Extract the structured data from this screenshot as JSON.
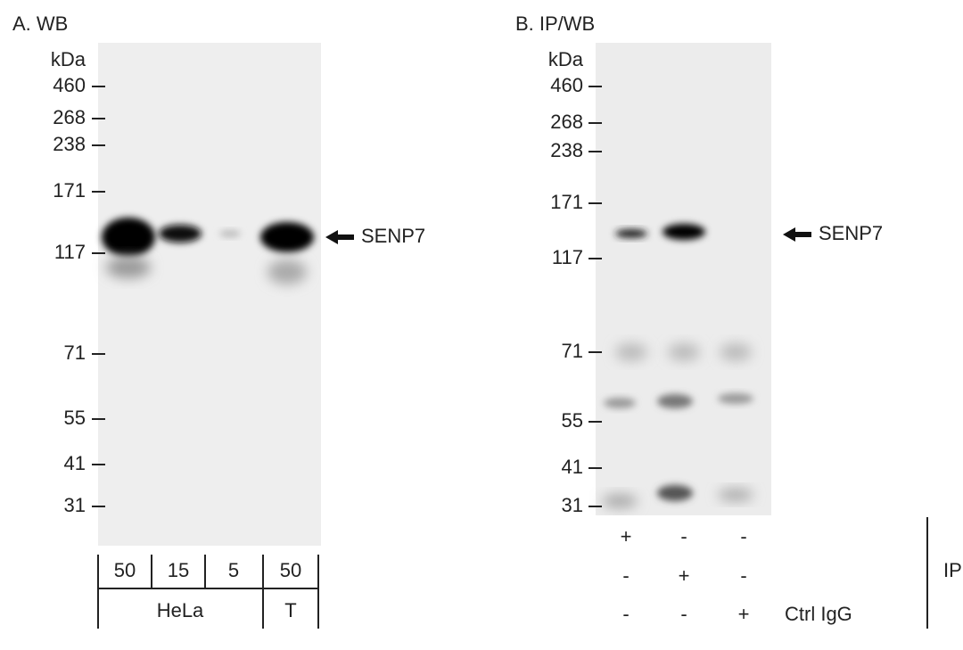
{
  "panels": [
    {
      "title": "A. WB",
      "unit": "kDa",
      "markers": [
        "460",
        "268",
        "238",
        "171",
        "117",
        "71",
        "55",
        "41",
        "31"
      ],
      "target": "SENP7",
      "lanes": [
        "50",
        "15",
        "5",
        "50"
      ],
      "groups": [
        "HeLa",
        "T"
      ]
    },
    {
      "title": "B. IP/WB",
      "unit": "kDa",
      "markers": [
        "460",
        "268",
        "238",
        "171",
        "117",
        "71",
        "55",
        "41",
        "31"
      ],
      "target": "SENP7",
      "rows": [
        [
          "+",
          "-",
          "-"
        ],
        [
          "-",
          "+",
          "-"
        ],
        [
          "-",
          "-",
          "+"
        ]
      ],
      "row_label": "Ctrl IgG",
      "bracket_label": "IP"
    }
  ]
}
